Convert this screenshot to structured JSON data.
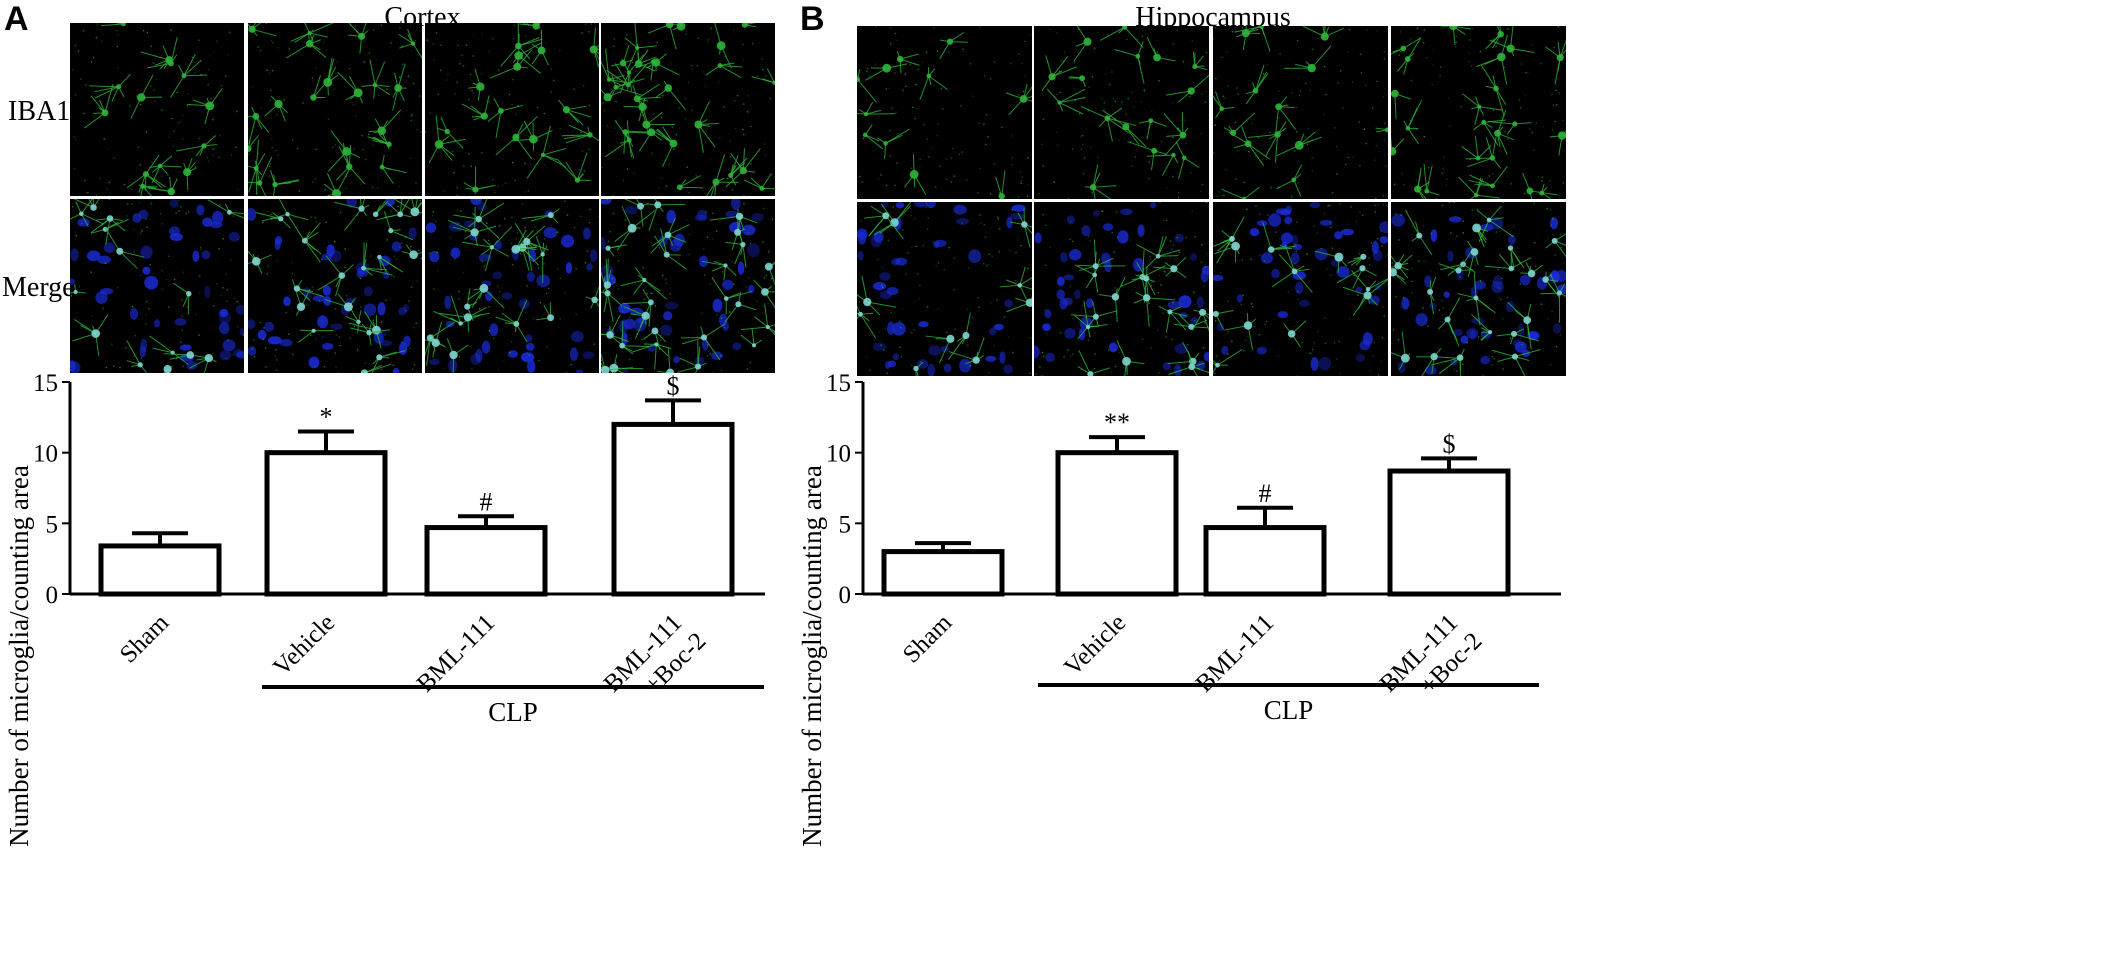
{
  "figure": {
    "panel_a": {
      "letter": "A",
      "region": "Cortex",
      "row_labels": [
        "IBA1",
        "Merge"
      ]
    },
    "panel_b": {
      "letter": "B",
      "region": "Hippocampus"
    }
  },
  "colors": {
    "microscopy_background": "#000000",
    "iba1_stain": "#2fb53a",
    "dapi_stain": "#1a2bd6",
    "bars": "#ffffff",
    "bar_outline": "#000000"
  },
  "chart_data": [
    {
      "type": "bar",
      "panel": "A",
      "ylabel": "Number of microglia/counting area",
      "ylim": [
        0,
        15
      ],
      "yticks": [
        0,
        5,
        10,
        15
      ],
      "categories": [
        "Sham",
        "Vehicle",
        "BML-111",
        "BML-111\n+Boc-2"
      ],
      "values": [
        3.4,
        10.0,
        4.7,
        12.0
      ],
      "errors": [
        0.9,
        1.5,
        0.8,
        1.7
      ],
      "significance": [
        "",
        "*",
        "#",
        "$"
      ],
      "group_bracket": {
        "label": "CLP",
        "spans": [
          "Vehicle",
          "BML-111\n+Boc-2"
        ]
      }
    },
    {
      "type": "bar",
      "panel": "B",
      "ylabel": "Number of microglia/counting area",
      "ylim": [
        0,
        15
      ],
      "yticks": [
        0,
        5,
        10,
        15
      ],
      "categories": [
        "Sham",
        "Vehicle",
        "BML-111",
        "BML-111\n+Boc-2"
      ],
      "values": [
        3.0,
        10.0,
        4.7,
        8.7
      ],
      "errors": [
        0.6,
        1.1,
        1.4,
        0.9
      ],
      "significance": [
        "",
        "**",
        "#",
        "$"
      ],
      "group_bracket": {
        "label": "CLP",
        "spans": [
          "Vehicle",
          "BML-111\n+Boc-2"
        ]
      }
    }
  ]
}
